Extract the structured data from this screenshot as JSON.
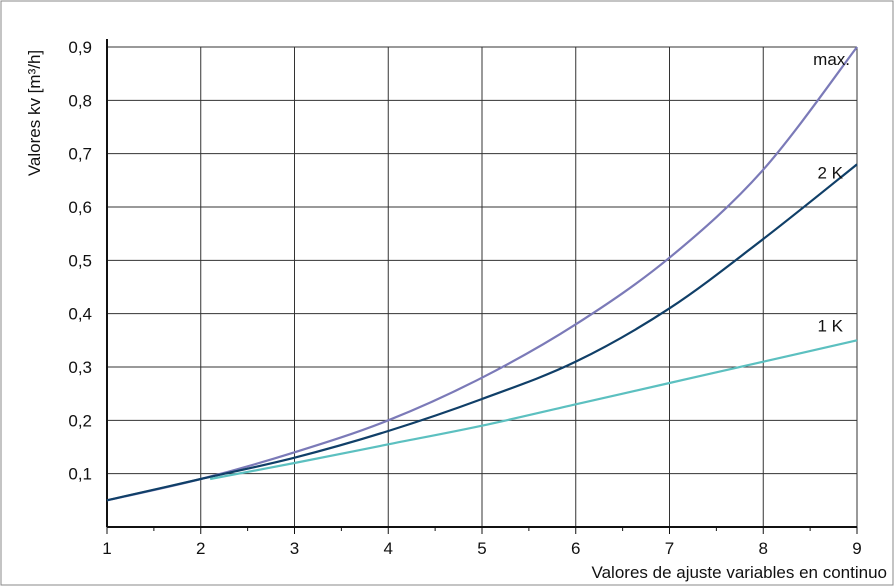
{
  "chart_data": {
    "type": "line",
    "xlabel": "Valores de ajuste variables en continuo",
    "ylabel": "Valores kv [m³/h]",
    "xlim": [
      1,
      9
    ],
    "ylim": [
      0,
      0.9
    ],
    "x_ticks": [
      1,
      2,
      3,
      4,
      5,
      6,
      7,
      8,
      9
    ],
    "x_tick_labels": [
      "1",
      "2",
      "3",
      "4",
      "5",
      "6",
      "7",
      "8",
      "9"
    ],
    "y_ticks": [
      0.1,
      0.2,
      0.3,
      0.4,
      0.5,
      0.6,
      0.7,
      0.8,
      0.9
    ],
    "y_tick_labels": [
      "0,1",
      "0,2",
      "0,3",
      "0,4",
      "0,5",
      "0,6",
      "0,7",
      "0,8",
      "0,9"
    ],
    "x_minor_ticks": [
      1.5,
      2.5,
      3.5,
      4.5,
      5.5,
      6.5,
      7.5,
      8.5
    ],
    "grid": true,
    "series": [
      {
        "name": "max.",
        "color": "#7b7ab8",
        "x": [
          1,
          2,
          3,
          4,
          5,
          6,
          7,
          8,
          9
        ],
        "values": [
          0.05,
          0.09,
          0.14,
          0.2,
          0.28,
          0.38,
          0.505,
          0.67,
          0.9
        ]
      },
      {
        "name": "2 K",
        "color": "#103f68",
        "x": [
          1,
          2,
          3,
          4,
          5,
          6,
          7,
          8,
          9
        ],
        "values": [
          0.05,
          0.09,
          0.13,
          0.18,
          0.24,
          0.31,
          0.41,
          0.54,
          0.68
        ]
      },
      {
        "name": "1 K",
        "color": "#5cc0c0",
        "x": [
          2.1,
          3,
          4,
          5,
          6,
          7,
          8,
          9
        ],
        "values": [
          0.09,
          0.12,
          0.155,
          0.19,
          0.23,
          0.27,
          0.31,
          0.35
        ]
      }
    ]
  }
}
